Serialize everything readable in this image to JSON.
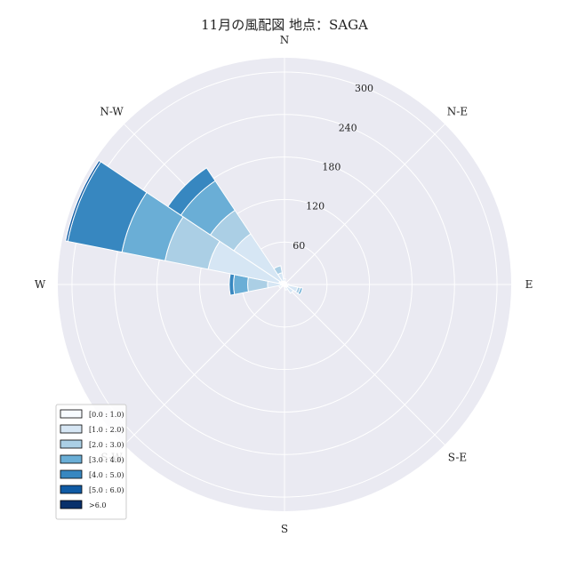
{
  "chart_data": {
    "type": "windrose",
    "title": "11月の風配図 地点：SAGA",
    "direction_labels": [
      "N",
      "N-E",
      "E",
      "S-E",
      "S",
      "S-W",
      "W",
      "N-W"
    ],
    "radial_ticks": [
      "60",
      "120",
      "180",
      "240",
      "300"
    ],
    "rmax": 320,
    "grid": true,
    "sector_width_deg": 22.5,
    "legend_position": "lower-left",
    "bins": [
      {
        "label": "[0.0 : 1.0)",
        "color": "#f7fbff"
      },
      {
        "label": "[1.0 : 2.0)",
        "color": "#d6e6f4"
      },
      {
        "label": "[2.0 : 3.0)",
        "color": "#abcfe5"
      },
      {
        "label": "[3.0 : 4.0)",
        "color": "#6aaed6"
      },
      {
        "label": "[4.0 : 5.0)",
        "color": "#3787c0"
      },
      {
        "label": "[5.0 : 6.0)",
        "color": "#105ba4"
      },
      {
        "label": ">6.0",
        "color": "#08306b"
      }
    ],
    "directions": [
      {
        "dir": 0,
        "counts": [
          4,
          4,
          0,
          0,
          0,
          0,
          0
        ]
      },
      {
        "dir": 22.5,
        "counts": [
          4,
          0,
          0,
          0,
          0,
          0,
          0
        ]
      },
      {
        "dir": 45,
        "counts": [
          4,
          0,
          0,
          0,
          0,
          0,
          0
        ]
      },
      {
        "dir": 67.5,
        "counts": [
          3,
          0,
          0,
          0,
          0,
          0,
          0
        ]
      },
      {
        "dir": 90,
        "counts": [
          3,
          3,
          0,
          0,
          0,
          0,
          0
        ]
      },
      {
        "dir": 112.5,
        "counts": [
          5,
          14,
          4,
          3,
          0,
          0,
          0
        ]
      },
      {
        "dir": 135,
        "counts": [
          5,
          10,
          0,
          0,
          0,
          0,
          0
        ]
      },
      {
        "dir": 157.5,
        "counts": [
          4,
          4,
          0,
          0,
          0,
          0,
          0
        ]
      },
      {
        "dir": 180,
        "counts": [
          3,
          0,
          0,
          0,
          0,
          0,
          0
        ]
      },
      {
        "dir": 202.5,
        "counts": [
          3,
          0,
          0,
          0,
          0,
          0,
          0
        ]
      },
      {
        "dir": 225,
        "counts": [
          3,
          0,
          0,
          0,
          0,
          0,
          0
        ]
      },
      {
        "dir": 247.5,
        "counts": [
          4,
          4,
          0,
          0,
          0,
          0,
          0
        ]
      },
      {
        "dir": 270,
        "counts": [
          6,
          18,
          28,
          20,
          6,
          0,
          0
        ]
      },
      {
        "dir": 292.5,
        "counts": [
          8,
          102,
          62,
          62,
          78,
          3,
          0
        ]
      },
      {
        "dir": 315,
        "counts": [
          6,
          80,
          40,
          50,
          22,
          0,
          0
        ]
      },
      {
        "dir": 337.5,
        "counts": [
          5,
          12,
          10,
          0,
          0,
          0,
          0
        ]
      }
    ]
  }
}
